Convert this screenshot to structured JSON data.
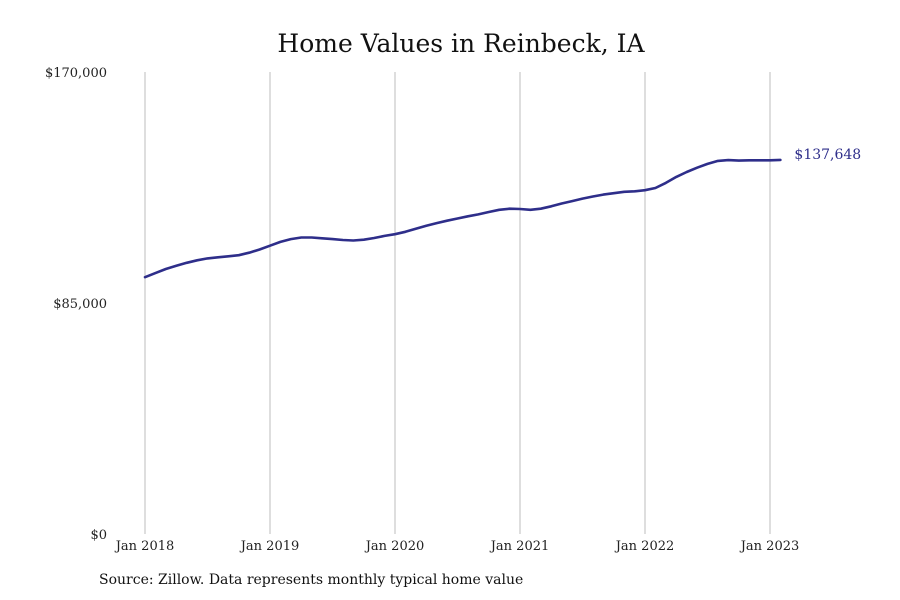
{
  "chart_data": {
    "type": "line",
    "title": "Home Values in Reinbeck, IA",
    "xlabel": "",
    "ylabel": "",
    "ylim": [
      0,
      170000
    ],
    "y_ticks": [
      {
        "value": 0,
        "label": "$0"
      },
      {
        "value": 85000,
        "label": "$85,000"
      },
      {
        "value": 170000,
        "label": "$170,000"
      }
    ],
    "x_ticks": [
      {
        "value": 2018.0,
        "label": "Jan 2018"
      },
      {
        "value": 2019.0,
        "label": "Jan 2019"
      },
      {
        "value": 2020.0,
        "label": "Jan 2020"
      },
      {
        "value": 2021.0,
        "label": "Jan 2021"
      },
      {
        "value": 2022.0,
        "label": "Jan 2022"
      },
      {
        "value": 2023.0,
        "label": "Jan 2023"
      }
    ],
    "x_range": [
      "Jan 2018",
      "Feb 2023"
    ],
    "grid": {
      "vertical": true,
      "horizontal": false
    },
    "line_color": "#2e2e8a",
    "series": [
      {
        "name": "",
        "x": [
          "2018-01",
          "2018-02",
          "2018-03",
          "2018-04",
          "2018-05",
          "2018-06",
          "2018-07",
          "2018-08",
          "2018-09",
          "2018-10",
          "2018-11",
          "2018-12",
          "2019-01",
          "2019-02",
          "2019-03",
          "2019-04",
          "2019-05",
          "2019-06",
          "2019-07",
          "2019-08",
          "2019-09",
          "2019-10",
          "2019-11",
          "2019-12",
          "2020-01",
          "2020-02",
          "2020-03",
          "2020-04",
          "2020-05",
          "2020-06",
          "2020-07",
          "2020-08",
          "2020-09",
          "2020-10",
          "2020-11",
          "2020-12",
          "2021-01",
          "2021-02",
          "2021-03",
          "2021-04",
          "2021-05",
          "2021-06",
          "2021-07",
          "2021-08",
          "2021-09",
          "2021-10",
          "2021-11",
          "2021-12",
          "2022-01",
          "2022-02",
          "2022-03",
          "2022-04",
          "2022-05",
          "2022-06",
          "2022-07",
          "2022-08",
          "2022-09",
          "2022-10",
          "2022-11",
          "2022-12",
          "2023-01",
          "2023-02"
        ],
        "values": [
          94500,
          96000,
          97500,
          98700,
          99800,
          100700,
          101400,
          101800,
          102200,
          102600,
          103500,
          104700,
          106100,
          107500,
          108500,
          109100,
          109100,
          108800,
          108500,
          108200,
          108000,
          108300,
          108900,
          109700,
          110300,
          111200,
          112300,
          113400,
          114400,
          115300,
          116100,
          116900,
          117600,
          118500,
          119300,
          119700,
          119600,
          119300,
          119700,
          120600,
          121600,
          122500,
          123400,
          124200,
          124900,
          125400,
          125900,
          126100,
          126500,
          127300,
          129200,
          131400,
          133200,
          134800,
          136200,
          137300,
          137600,
          137400,
          137500,
          137500,
          137500,
          137648
        ],
        "end_label": "$137,648"
      }
    ]
  },
  "source_note": "Source: Zillow. Data represents monthly typical home value"
}
